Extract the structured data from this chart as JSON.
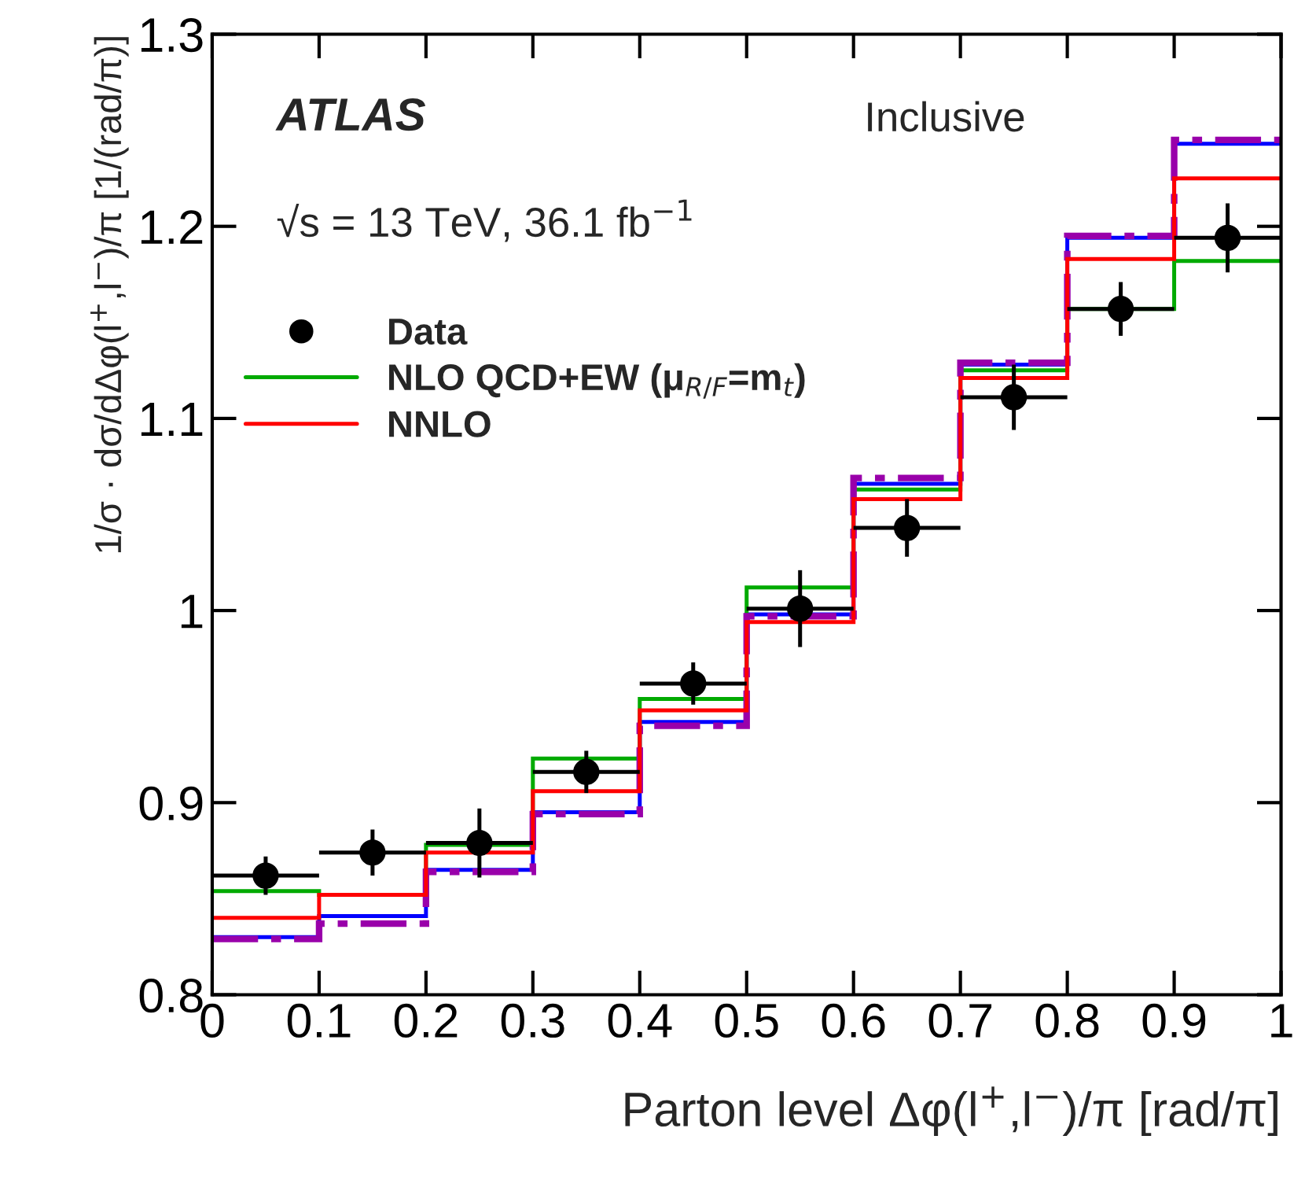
{
  "chart_data": {
    "type": "histogram",
    "xlabel": "Parton level Δφ(l$^{+}$,l$^{−}$)/π [rad/π]",
    "ylabel": "1/σ · dσ/dΔφ(l$^{+}$,l$^{−}$)/π [1/(rad/π)]",
    "annotations": [
      "ATLAS",
      "√s = 13 TeV, 36.1 fb$^{−1}$",
      "Inclusive"
    ],
    "bins": [
      0,
      0.1,
      0.2,
      0.3,
      0.4,
      0.5,
      0.6,
      0.7,
      0.8,
      0.9,
      1
    ],
    "series": [
      {
        "name": "Data",
        "type": "scatter",
        "color": "#000000",
        "marker": "circle",
        "x": [
          0.05,
          0.15,
          0.25,
          0.35,
          0.45,
          0.55,
          0.65,
          0.75,
          0.85,
          0.95
        ],
        "values": [
          0.862,
          0.874,
          0.879,
          0.916,
          0.962,
          1.001,
          1.043,
          1.111,
          1.157,
          1.194
        ],
        "errors": [
          0.01,
          0.012,
          0.018,
          0.011,
          0.011,
          0.02,
          0.015,
          0.017,
          0.014,
          0.018
        ],
        "xerrors": [
          0.05,
          0.05,
          0.05,
          0.05,
          0.05,
          0.05,
          0.05,
          0.05,
          0.05,
          0.05
        ]
      },
      {
        "color": "#0000ff",
        "values": [
          0.83,
          0.841,
          0.865,
          0.895,
          0.942,
          0.998,
          1.066,
          1.128,
          1.194,
          1.243
        ]
      },
      {
        "name": "NLO QCD+EW (μ$_{R/F}$=m$_{t}$)",
        "color": "#00aa00",
        "values": [
          0.854,
          0.852,
          0.878,
          0.923,
          0.954,
          1.012,
          1.063,
          1.125,
          1.157,
          1.182
        ]
      },
      {
        "color": "#9900aa",
        "line_style": "dashed",
        "values": [
          0.829,
          0.837,
          0.864,
          0.894,
          0.94,
          0.997,
          1.069,
          1.129,
          1.195,
          1.245
        ]
      },
      {
        "name": "NNLO",
        "color": "#ff0000",
        "values": [
          0.84,
          0.852,
          0.874,
          0.906,
          0.948,
          0.994,
          1.058,
          1.121,
          1.183,
          1.225
        ]
      }
    ],
    "xlim": [
      0,
      1
    ],
    "xticks": [
      0,
      0.1,
      0.2,
      0.3,
      0.4,
      0.5,
      0.6,
      0.7,
      0.8,
      0.9,
      1
    ],
    "ylim": [
      0.8,
      1.3
    ],
    "yticks": [
      0.8,
      0.9,
      1,
      1.1,
      1.2,
      1.3
    ],
    "legend": "top left",
    "grid": false
  }
}
